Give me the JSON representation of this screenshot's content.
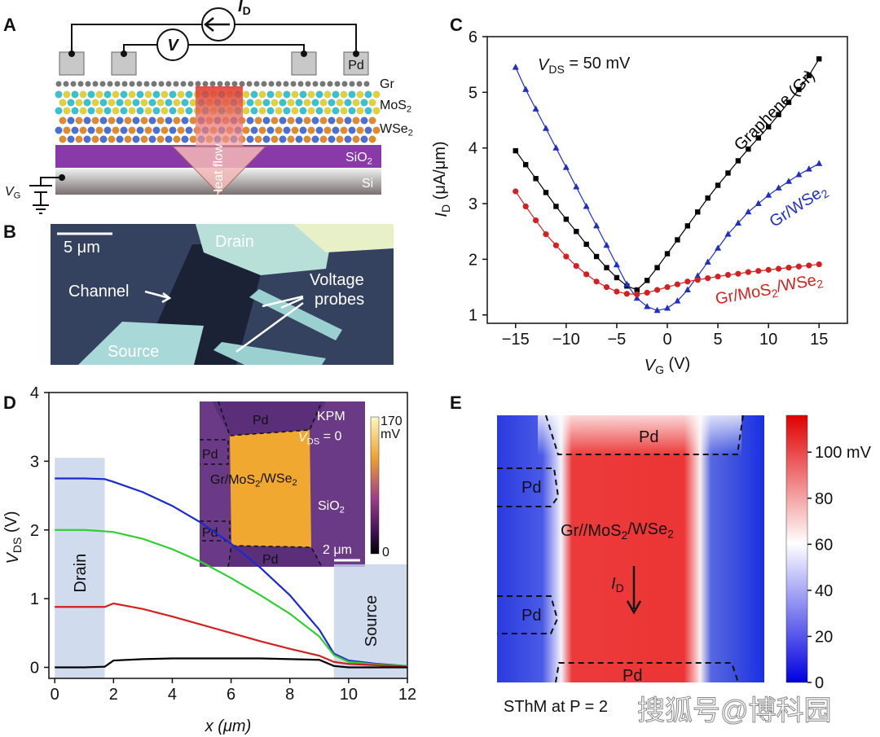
{
  "panel_letters": [
    "A",
    "B",
    "C",
    "D",
    "E"
  ],
  "panel_a": {
    "current": [
      "I",
      "D"
    ],
    "voltage": "V",
    "pad": "Pd",
    "layers": [
      "Gr",
      [
        "MoS",
        "2"
      ],
      [
        "WSe",
        "2"
      ],
      [
        "SiO",
        "2"
      ],
      "Si"
    ],
    "heat_flow": "Heat flow",
    "gate": [
      "V",
      "G"
    ]
  },
  "panel_b": {
    "scale_bar": "5 μm",
    "drain": "Drain",
    "channel": "Channel",
    "voltage_probes": [
      "Voltage",
      "probes"
    ],
    "source": "Source"
  },
  "chart_data": [
    {
      "type": "line",
      "xlabel": [
        "V",
        "G",
        " (V)"
      ],
      "ylabel": [
        "I",
        "D",
        " (μA/μm)"
      ],
      "annotation": [
        "V",
        "DS",
        " = 50 mV"
      ],
      "x": [
        -15,
        -14,
        -13,
        -12,
        -11,
        -10,
        -9,
        -8,
        -7,
        -6,
        -5,
        -4,
        -3,
        -2,
        -1,
        0,
        1,
        2,
        3,
        4,
        5,
        6,
        7,
        8,
        9,
        10,
        11,
        12,
        13,
        14,
        15
      ],
      "xlim": [
        -17.8,
        17.8
      ],
      "xticks": [
        {
          "value": -15,
          "label": "−15"
        },
        {
          "value": -10,
          "label": "−10"
        },
        {
          "value": -5,
          "label": "−5"
        },
        0,
        5,
        10,
        15
      ],
      "ylim": [
        0.85,
        6
      ],
      "yticks": [
        1,
        2,
        3,
        4,
        5,
        6
      ],
      "series": [
        {
          "name": "Graphene (Gr)",
          "color": "#000000",
          "marker": "square",
          "values": [
            3.95,
            3.7,
            3.45,
            3.2,
            2.95,
            2.72,
            2.5,
            2.27,
            2.05,
            1.85,
            1.67,
            1.52,
            1.45,
            1.62,
            1.85,
            2.1,
            2.35,
            2.6,
            2.85,
            3.1,
            3.33,
            3.55,
            3.77,
            3.98,
            4.18,
            4.38,
            4.6,
            4.82,
            5.05,
            5.3,
            5.6
          ]
        },
        {
          "name": [
            "Gr/WSe",
            "2"
          ],
          "color": "#1f2fc0",
          "marker": "triangle",
          "values": [
            5.45,
            5.05,
            4.7,
            4.35,
            4.0,
            3.65,
            3.3,
            2.95,
            2.6,
            2.25,
            1.9,
            1.55,
            1.3,
            1.15,
            1.08,
            1.12,
            1.25,
            1.45,
            1.7,
            1.95,
            2.2,
            2.45,
            2.65,
            2.85,
            3.0,
            3.15,
            3.28,
            3.4,
            3.52,
            3.62,
            3.72
          ]
        },
        {
          "name": [
            "Gr/MoS",
            "2",
            "/WSe",
            "2"
          ],
          "color": "#d42020",
          "marker": "circle",
          "values": [
            3.22,
            2.95,
            2.7,
            2.45,
            2.25,
            2.05,
            1.88,
            1.73,
            1.6,
            1.5,
            1.42,
            1.38,
            1.37,
            1.4,
            1.45,
            1.5,
            1.55,
            1.6,
            1.63,
            1.66,
            1.69,
            1.72,
            1.74,
            1.77,
            1.79,
            1.81,
            1.83,
            1.85,
            1.87,
            1.89,
            1.91
          ]
        }
      ]
    },
    {
      "type": "line",
      "xlabel": "x (μm)",
      "ylabel": [
        "V",
        "DS",
        " (V)"
      ],
      "x": [
        0,
        1,
        1.7,
        2,
        3,
        4,
        5,
        6,
        7,
        8,
        9,
        9.5,
        10,
        11,
        12
      ],
      "xlim": [
        -0.2,
        12
      ],
      "xticks": [
        0,
        2,
        4,
        6,
        8,
        10,
        12
      ],
      "ylim": [
        -0.16,
        4
      ],
      "yticks": [
        0,
        1,
        2,
        3,
        4
      ],
      "regions": [
        {
          "label": "Drain",
          "x": [
            0,
            1.7
          ],
          "top": 3.05
        },
        {
          "label": "Source",
          "x": [
            9.5,
            12
          ],
          "top": 1.5
        }
      ],
      "series": [
        {
          "color": "#1a2ad0",
          "values": [
            2.75,
            2.75,
            2.74,
            2.7,
            2.55,
            2.35,
            2.1,
            1.8,
            1.45,
            1.05,
            0.55,
            0.2,
            0.1,
            0.05,
            0.02
          ]
        },
        {
          "color": "#30d030",
          "values": [
            2.0,
            2.0,
            1.98,
            1.97,
            1.87,
            1.72,
            1.53,
            1.3,
            1.05,
            0.78,
            0.45,
            0.18,
            0.08,
            0.04,
            0.02
          ]
        },
        {
          "color": "#d42020",
          "values": [
            0.88,
            0.88,
            0.88,
            0.93,
            0.85,
            0.74,
            0.62,
            0.5,
            0.38,
            0.27,
            0.17,
            0.08,
            0.05,
            0.03,
            0.01
          ]
        },
        {
          "color": "#000000",
          "values": [
            0.0,
            0.0,
            0.01,
            0.1,
            0.12,
            0.13,
            0.13,
            0.13,
            0.13,
            0.12,
            0.11,
            0.02,
            0.0,
            0.0,
            0.0
          ]
        }
      ],
      "inset": {
        "pads": [
          "Pd",
          "Pd",
          "Pd",
          "Pd"
        ],
        "material": [
          "Gr/MoS",
          "2",
          "/WSe",
          "2"
        ],
        "substrate": [
          "SiO",
          "2"
        ],
        "mode": "KPM",
        "bias": [
          "V",
          "DS",
          " = 0"
        ],
        "scale_bar": "2 μm",
        "colorbar": {
          "max": 170,
          "unit": "mV",
          "min": 0
        }
      }
    }
  ],
  "panel_e": {
    "pads": [
      "Pd",
      "Pd",
      "Pd",
      "Pd"
    ],
    "material": [
      "Gr//MoS",
      "2",
      "/WSe",
      "2"
    ],
    "current": [
      "I",
      "D"
    ],
    "caption": "SThM at P = 2",
    "colorbar": {
      "clim": [
        0,
        116
      ],
      "ticks": [
        0,
        20,
        40,
        60,
        80,
        {
          "value": 100,
          "label": "100 mV"
        }
      ]
    }
  },
  "watermark": "搜狐号@博科园"
}
